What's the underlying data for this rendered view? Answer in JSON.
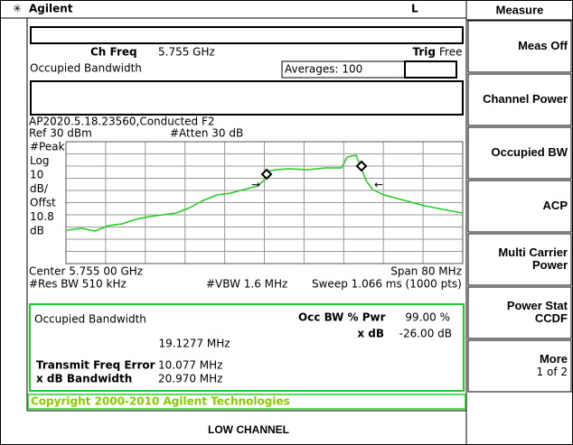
{
  "header": {
    "brand": "Agilent",
    "indicator": "L"
  },
  "softkeys": {
    "title": "Measure",
    "keys": [
      {
        "lines": [
          "Meas Off"
        ]
      },
      {
        "lines": [
          "Channel Power"
        ]
      },
      {
        "lines": [
          "Occupied BW"
        ]
      },
      {
        "lines": [
          "ACP"
        ]
      },
      {
        "lines": [
          "Multi Carrier",
          "Power"
        ]
      },
      {
        "lines": [
          "Power Stat",
          "CCDF"
        ]
      },
      {
        "lines": [
          "More",
          "1 of 2"
        ]
      }
    ]
  },
  "settings": {
    "ch_freq_label": "Ch Freq",
    "ch_freq": "5.755 GHz",
    "trig_label": "Trig",
    "trig": "Free",
    "measurement": "Occupied Bandwidth",
    "averages": "Averages: 100"
  },
  "screen": {
    "file": "AP2020.5.18.23560,Conducted F2",
    "ref": "Ref 30 dBm",
    "atten": "#Atten 30 dB",
    "left_labels": [
      "#Peak",
      "Log",
      "10",
      "dB/",
      "Offst",
      "10.8",
      "dB"
    ],
    "center": "Center 5.755 00 GHz",
    "span": "Span 80 MHz",
    "res_bw": "#Res BW 510 kHz",
    "vbw": "#VBW 1.6 MHz",
    "sweep": "Sweep 1.066 ms (1000 pts)"
  },
  "results": {
    "title": "Occupied Bandwidth",
    "value": "19.1277 MHz",
    "occ_label": "Occ BW % Pwr",
    "occ_value": "99.00 %",
    "xdb_label": "x dB",
    "xdb_value": "-26.00 dB",
    "tfe_label": "Transmit Freq Error",
    "tfe_value": "10.077 MHz",
    "xbw_label": "x dB Bandwidth",
    "xbw_value": "20.970 MHz"
  },
  "status": "Copyright 2000-2010 Agilent Technologies",
  "caption": "LOW CHANNEL"
}
